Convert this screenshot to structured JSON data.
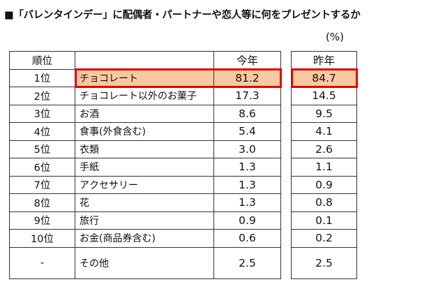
{
  "title": "■「バレンタインデー」に配偶者・パートナーや恋人等に何をプレゼントするか",
  "unit": "(%)",
  "headers": {
    "rank": "順位",
    "item": "",
    "current": "今年",
    "previous": "昨年"
  },
  "highlight_color": "#f7c9a0",
  "highlight_border": "#e00000",
  "chart_data": {
    "type": "table",
    "title": "■「バレンタインデー」に配偶者・パートナーや恋人等に何をプレゼントするか",
    "unit": "(%)",
    "columns": [
      "順位",
      "",
      "今年",
      "昨年"
    ],
    "rows": [
      {
        "rank": "1位",
        "item": "チョコレート",
        "current": "81.2",
        "previous": "84.7"
      },
      {
        "rank": "2位",
        "item": "チョコレート以外のお菓子",
        "current": "17.3",
        "previous": "14.5"
      },
      {
        "rank": "3位",
        "item": "お酒",
        "current": "8.6",
        "previous": "9.5"
      },
      {
        "rank": "4位",
        "item": "食事(外食含む)",
        "current": "5.4",
        "previous": "4.1"
      },
      {
        "rank": "5位",
        "item": "衣類",
        "current": "3.0",
        "previous": "2.6"
      },
      {
        "rank": "6位",
        "item": "手紙",
        "current": "1.3",
        "previous": "1.1"
      },
      {
        "rank": "7位",
        "item": "アクセサリー",
        "current": "1.3",
        "previous": "0.9"
      },
      {
        "rank": "8位",
        "item": "花",
        "current": "1.3",
        "previous": "0.8"
      },
      {
        "rank": "9位",
        "item": "旅行",
        "current": "0.9",
        "previous": "0.1"
      },
      {
        "rank": "10位",
        "item": "お金(商品券含む)",
        "current": "0.6",
        "previous": "0.2"
      },
      {
        "rank": "-",
        "item": "その他",
        "current": "2.5",
        "previous": "2.5"
      }
    ]
  }
}
